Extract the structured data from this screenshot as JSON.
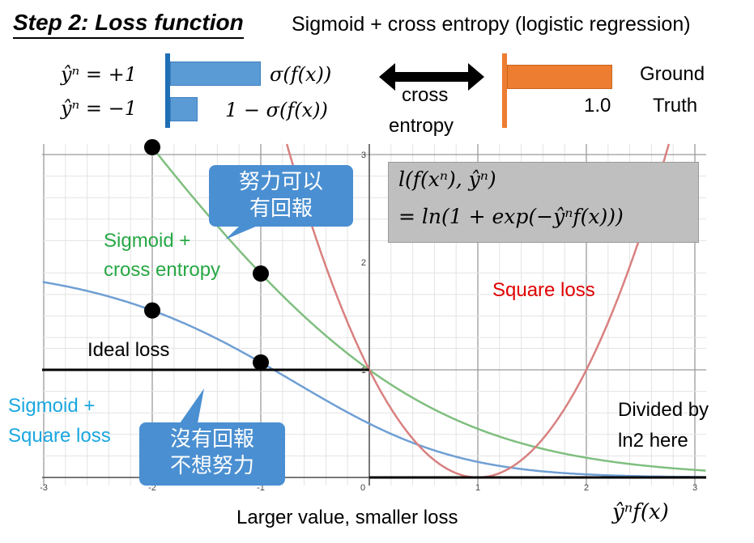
{
  "header": {
    "title": "Step 2: Loss function",
    "subtitle": "Sigmoid + cross entropy (logistic regression)"
  },
  "top_diagram": {
    "label_pos": "ŷⁿ = +1",
    "label_neg": "ŷⁿ = −1",
    "sigma_expr": "σ(f(x))",
    "one_minus_sigma_expr": "1 − σ(f(x))",
    "arrow_label_1": "cross",
    "arrow_label_2": "entropy",
    "ground_truth_value": "1.0",
    "ground_truth_label_1": "Ground",
    "ground_truth_label_2": "Truth",
    "colors": {
      "bar_blue": "#5b9bd5",
      "axis_blue": "#1f6fb5",
      "bar_orange": "#ed7d31",
      "axis_orange": "#ed7d31"
    }
  },
  "formula": {
    "line1": "l(f(xⁿ), ŷⁿ)",
    "line2": "= ln(1 + exp(−ŷⁿf(x)))"
  },
  "callouts": {
    "top_line1": "努力可以",
    "top_line2": "有回報",
    "bottom_line1": "沒有回報",
    "bottom_line2": "不想努力"
  },
  "annotations": {
    "divided_1": "Divided by",
    "divided_2": "ln2 here",
    "larger_value": "Larger value, smaller loss"
  },
  "chart_data": {
    "type": "line",
    "xlabel": "ŷⁿf(x)",
    "ylabel": "",
    "xlim": [
      -3,
      3
    ],
    "ylim": [
      0,
      3
    ],
    "x_ticks": [
      "-3",
      "-2",
      "-1",
      "0",
      "1",
      "2",
      "3"
    ],
    "y_ticks": [
      "1",
      "2",
      "3"
    ],
    "grid": true,
    "series": [
      {
        "name": "Sigmoid + cross entropy",
        "label_lines": [
          "Sigmoid +",
          "cross entropy"
        ],
        "color": "#27a845",
        "curve_color": "#7fbf7f",
        "formula": "log2(1+exp(-z))"
      },
      {
        "name": "Sigmoid + Square loss",
        "label_lines": [
          "Sigmoid +",
          "Square loss"
        ],
        "color": "#1aa7e0",
        "curve_color": "#6f9fd4",
        "formula": "2*(sigmoid(z)-1)^2"
      },
      {
        "name": "Square loss",
        "label_lines": [
          "Square loss"
        ],
        "color": "#e00000",
        "curve_color": "#d98080",
        "formula": "(z-1)^2"
      },
      {
        "name": "Ideal loss",
        "label_lines": [
          "Ideal loss"
        ],
        "color": "#000000",
        "curve_color": "#000000",
        "formula": "step"
      }
    ],
    "marked_points": [
      {
        "series": "Sigmoid + cross entropy",
        "x": -2
      },
      {
        "series": "Sigmoid + cross entropy",
        "x": -1
      },
      {
        "series": "Sigmoid + Square loss",
        "x": -2
      },
      {
        "series": "Sigmoid + Square loss",
        "x": -1
      }
    ]
  }
}
